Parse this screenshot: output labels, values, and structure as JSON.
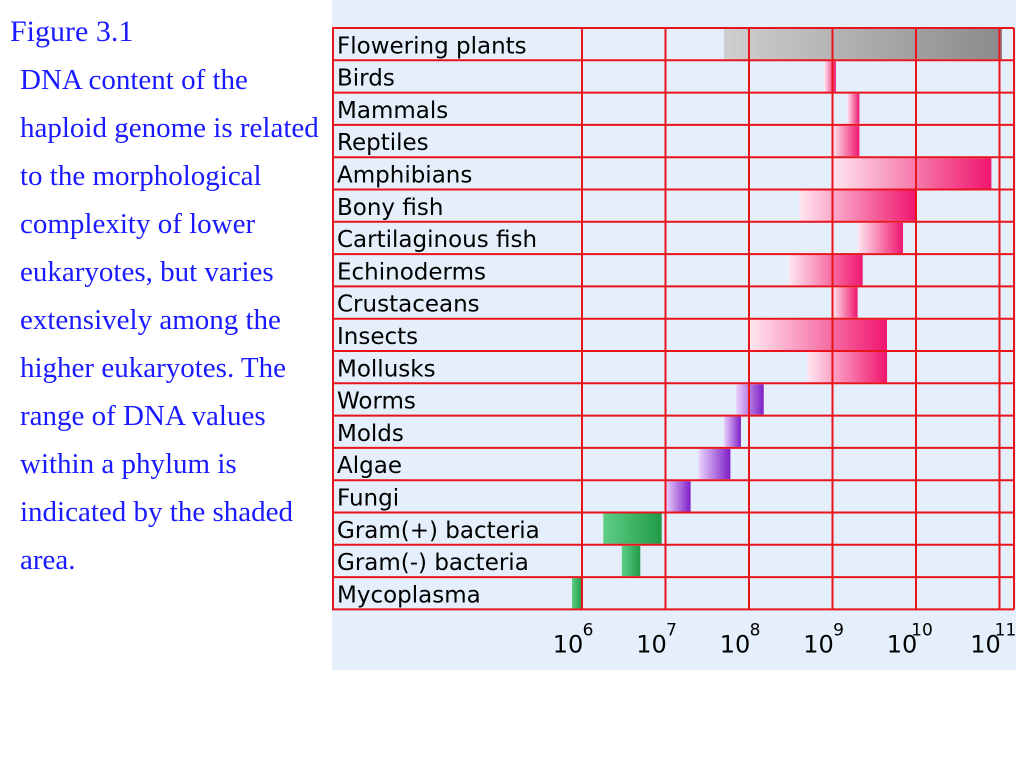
{
  "caption": {
    "title": "Figure 3.1",
    "text": "DNA content of the haploid genome is related to the morphological complexity of lower eukaryotes, but varies extensively among the higher eukaryotes. The range of DNA values within a phylum is indicated by the shaded area."
  },
  "chart_data": {
    "type": "bar",
    "scale": "log",
    "xlim": [
      1000000,
      100000000000
    ],
    "x_ticks": [
      {
        "base": "10",
        "exp": "6",
        "value": 1000000
      },
      {
        "base": "10",
        "exp": "7",
        "value": 10000000
      },
      {
        "base": "10",
        "exp": "8",
        "value": 100000000
      },
      {
        "base": "10",
        "exp": "9",
        "value": 1000000000
      },
      {
        "base": "10",
        "exp": "10",
        "value": 10000000000
      },
      {
        "base": "10",
        "exp": "11",
        "value": 100000000000
      }
    ],
    "grid": true,
    "colors": {
      "grid": "#e8131b",
      "plants": "#8a8a8a",
      "animals": "#f0166e",
      "fungi_algae": "#7e1fc7",
      "bacteria": "#1f9a48"
    },
    "rows": [
      {
        "label": "Flowering plants",
        "min": 50000000,
        "max": 125000000000,
        "group": "plants"
      },
      {
        "label": "Birds",
        "min": 800000000,
        "max": 1100000000,
        "group": "animals"
      },
      {
        "label": "Mammals",
        "min": 1500000000,
        "max": 2100000000,
        "group": "animals"
      },
      {
        "label": "Reptiles",
        "min": 1000000000,
        "max": 2100000000,
        "group": "animals"
      },
      {
        "label": "Amphibians",
        "min": 1000000000,
        "max": 80000000000,
        "group": "animals"
      },
      {
        "label": "Bony fish",
        "min": 400000000,
        "max": 10000000000,
        "group": "animals"
      },
      {
        "label": "Cartilaginous fish",
        "min": 2000000000,
        "max": 7000000000,
        "group": "animals"
      },
      {
        "label": "Echinoderms",
        "min": 300000000,
        "max": 2300000000,
        "group": "animals"
      },
      {
        "label": "Crustaceans",
        "min": 1000000000,
        "max": 2000000000,
        "group": "animals"
      },
      {
        "label": "Insects",
        "min": 100000000,
        "max": 4500000000,
        "group": "animals"
      },
      {
        "label": "Mollusks",
        "min": 500000000,
        "max": 4500000000,
        "group": "animals"
      },
      {
        "label": "Worms",
        "min": 70000000,
        "max": 150000000,
        "group": "fungi_algae"
      },
      {
        "label": "Molds",
        "min": 50000000,
        "max": 80000000,
        "group": "fungi_algae"
      },
      {
        "label": "Algae",
        "min": 25000000,
        "max": 60000000,
        "group": "fungi_algae"
      },
      {
        "label": "Fungi",
        "min": 10000000,
        "max": 20000000,
        "group": "fungi_algae"
      },
      {
        "label": "Gram(+) bacteria",
        "min": 1800000,
        "max": 9000000,
        "group": "bacteria"
      },
      {
        "label": "Gram(-) bacteria",
        "min": 3000000,
        "max": 5000000,
        "group": "bacteria"
      },
      {
        "label": "Mycoplasma",
        "min": 600000,
        "max": 1000000,
        "group": "bacteria"
      }
    ]
  }
}
